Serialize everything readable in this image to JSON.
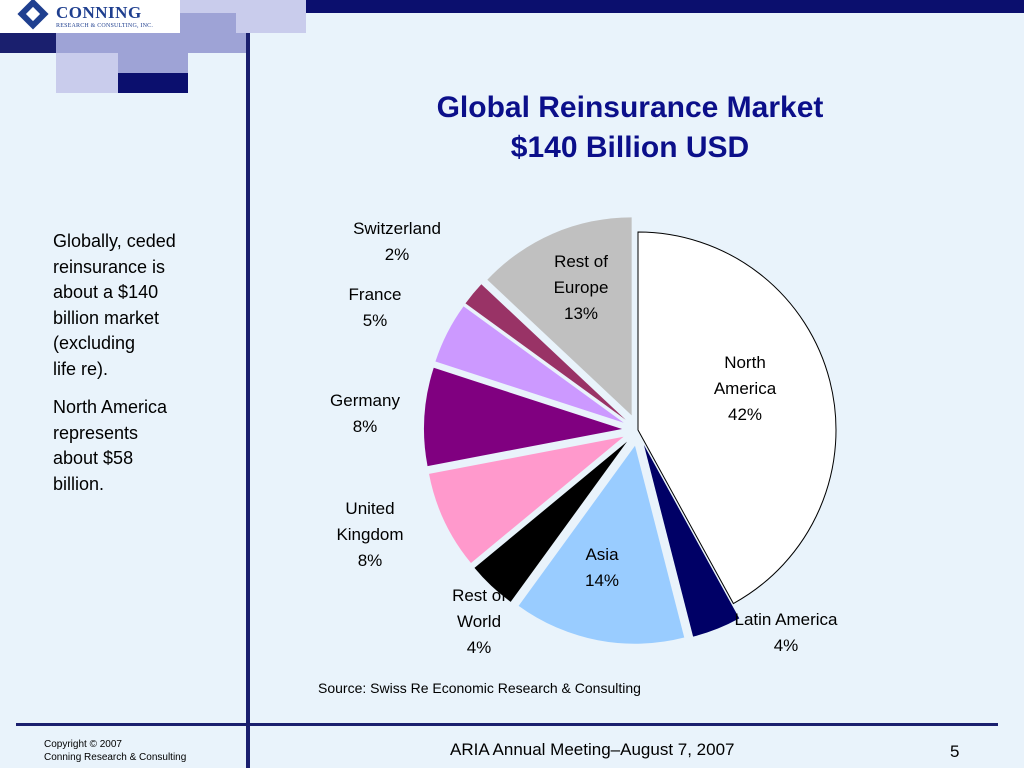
{
  "logo": {
    "name": "CONNING",
    "sub": "RESEARCH & CONSULTING, INC."
  },
  "title": {
    "line1": "Global Reinsurance Market",
    "line2": "$140 Billion USD"
  },
  "sidebar": {
    "para1": "Globally, ceded\nreinsurance is\nabout a $140\nbillion market\n(excluding\nlife re).",
    "para2": "North America\nrepresents\nabout $58\nbillion."
  },
  "source": "Source: Swiss Re Economic Research & Consulting",
  "footer": {
    "copyright_line1": "Copyright © 2007",
    "copyright_line2": "Conning Research & Consulting",
    "meeting": "ARIA Annual Meeting–August 7, 2007",
    "page_number": "5"
  },
  "colors": {
    "title": "#0B0F8A",
    "navy": "#1A1F6E",
    "background": "#E9F3FB"
  },
  "chart_data": {
    "type": "pie",
    "title": "Global Reinsurance Market $140 Billion USD",
    "slices": [
      {
        "label": "North America",
        "label_lines": [
          "North",
          "America",
          "42%"
        ],
        "value": 42,
        "color": "#FFFFFF"
      },
      {
        "label": "Latin America",
        "label_lines": [
          "Latin America",
          "4%"
        ],
        "value": 4,
        "color": "#000066"
      },
      {
        "label": "Asia",
        "label_lines": [
          "Asia",
          "14%"
        ],
        "value": 14,
        "color": "#99CCFF"
      },
      {
        "label": "Rest of World",
        "label_lines": [
          "Rest of",
          "World",
          "4%"
        ],
        "value": 4,
        "color": "#000000"
      },
      {
        "label": "United Kingdom",
        "label_lines": [
          "United",
          "Kingdom",
          "8%"
        ],
        "value": 8,
        "color": "#FF99CC"
      },
      {
        "label": "Germany",
        "label_lines": [
          "Germany",
          "8%"
        ],
        "value": 8,
        "color": "#800080"
      },
      {
        "label": "France",
        "label_lines": [
          "France",
          "5%"
        ],
        "value": 5,
        "color": "#CC99FF"
      },
      {
        "label": "Switzerland",
        "label_lines": [
          "Switzerland",
          "2%"
        ],
        "value": 2,
        "color": "#993366"
      },
      {
        "label": "Rest of Europe",
        "label_lines": [
          "Rest of",
          "Europe",
          "13%"
        ],
        "value": 13,
        "color": "#C0C0C0"
      }
    ]
  }
}
